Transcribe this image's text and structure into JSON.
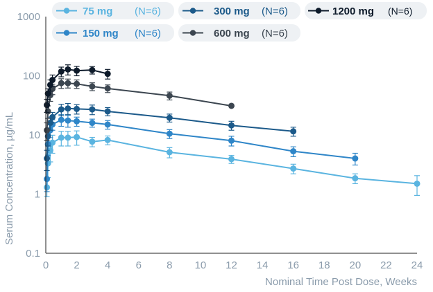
{
  "chart_data": {
    "type": "line",
    "title": "",
    "xlabel": "Nominal Time Post Dose, Weeks",
    "ylabel": "Serum Concentration, µg/mL",
    "xlim": [
      0,
      24
    ],
    "ylim": [
      0.1,
      1000
    ],
    "yscale": "log",
    "x_ticks": [
      "0",
      "2",
      "4",
      "6",
      "8",
      "10",
      "12",
      "14",
      "16",
      "18",
      "20",
      "22",
      "24"
    ],
    "y_ticks": [
      "0.1",
      "1",
      "10",
      "100",
      "1000"
    ],
    "legend_position": "top",
    "series": [
      {
        "name": "75 mg",
        "n_label": "(N=6)",
        "color": "#5ab4e0",
        "x": [
          0.07,
          0.14,
          0.29,
          0.43,
          1,
          1.43,
          2,
          3,
          4,
          8,
          12,
          16,
          20,
          24
        ],
        "y": [
          1.3,
          3.3,
          5.5,
          7.4,
          9.0,
          9.0,
          9.2,
          7.7,
          8.2,
          5.1,
          3.9,
          2.7,
          1.85,
          1.5
        ],
        "err": [
          0.4,
          1.4,
          2.0,
          2.5,
          2.5,
          2.5,
          2.5,
          1.4,
          1.4,
          1.0,
          0.6,
          0.5,
          0.35,
          0.55
        ]
      },
      {
        "name": "150 mg",
        "n_label": "(N=6)",
        "color": "#2f86c8",
        "x": [
          0.07,
          0.14,
          0.29,
          0.43,
          1,
          1.43,
          2,
          3,
          4,
          8,
          12,
          16,
          20
        ],
        "y": [
          1.8,
          7.0,
          12.0,
          15.0,
          18.0,
          17.5,
          17.0,
          16.0,
          15.0,
          10.5,
          8.0,
          5.3,
          4.0
        ],
        "err": [
          0.7,
          2.5,
          3.0,
          3.0,
          4.0,
          4.0,
          3.0,
          2.5,
          2.5,
          1.8,
          1.5,
          1.0,
          0.9
        ]
      },
      {
        "name": "300 mg",
        "n_label": "(N=6)",
        "color": "#1c5a8a",
        "x": [
          0.07,
          0.14,
          0.29,
          0.43,
          1,
          1.43,
          2,
          3,
          4,
          8,
          12,
          16
        ],
        "y": [
          4.0,
          9.5,
          16.0,
          20.0,
          27.0,
          28.0,
          27.5,
          27.0,
          25.0,
          19.5,
          14.5,
          11.5
        ],
        "err": [
          1.5,
          3.0,
          4.0,
          4.0,
          6.0,
          6.0,
          5.0,
          5.0,
          4.0,
          3.0,
          2.5,
          2.0
        ]
      },
      {
        "name": "600 mg",
        "n_label": "(N=6)",
        "color": "#3c4650",
        "x": [
          0.07,
          0.14,
          0.29,
          0.43,
          1,
          1.43,
          2,
          3,
          4,
          8,
          12
        ],
        "y": [
          12.0,
          25.0,
          47.0,
          60.0,
          75.0,
          75.0,
          73.0,
          66.0,
          61.0,
          46.0,
          31.0
        ],
        "err": [
          4.0,
          6.0,
          10.0,
          12.0,
          14.0,
          13.0,
          12.0,
          10.0,
          9.0,
          7.0,
          0
        ]
      },
      {
        "name": "1200 mg",
        "n_label": "(N=6)",
        "color": "#0d1a2a",
        "x": [
          0.07,
          0.14,
          0.29,
          0.43,
          1,
          1.43,
          2,
          3,
          4
        ],
        "y": [
          32.0,
          50.0,
          70.0,
          85.0,
          118.0,
          128.0,
          122.0,
          125.0,
          108.0
        ],
        "err": [
          8.0,
          10.0,
          15.0,
          18.0,
          22.0,
          25.0,
          22.0,
          18.0,
          20.0
        ]
      }
    ]
  }
}
